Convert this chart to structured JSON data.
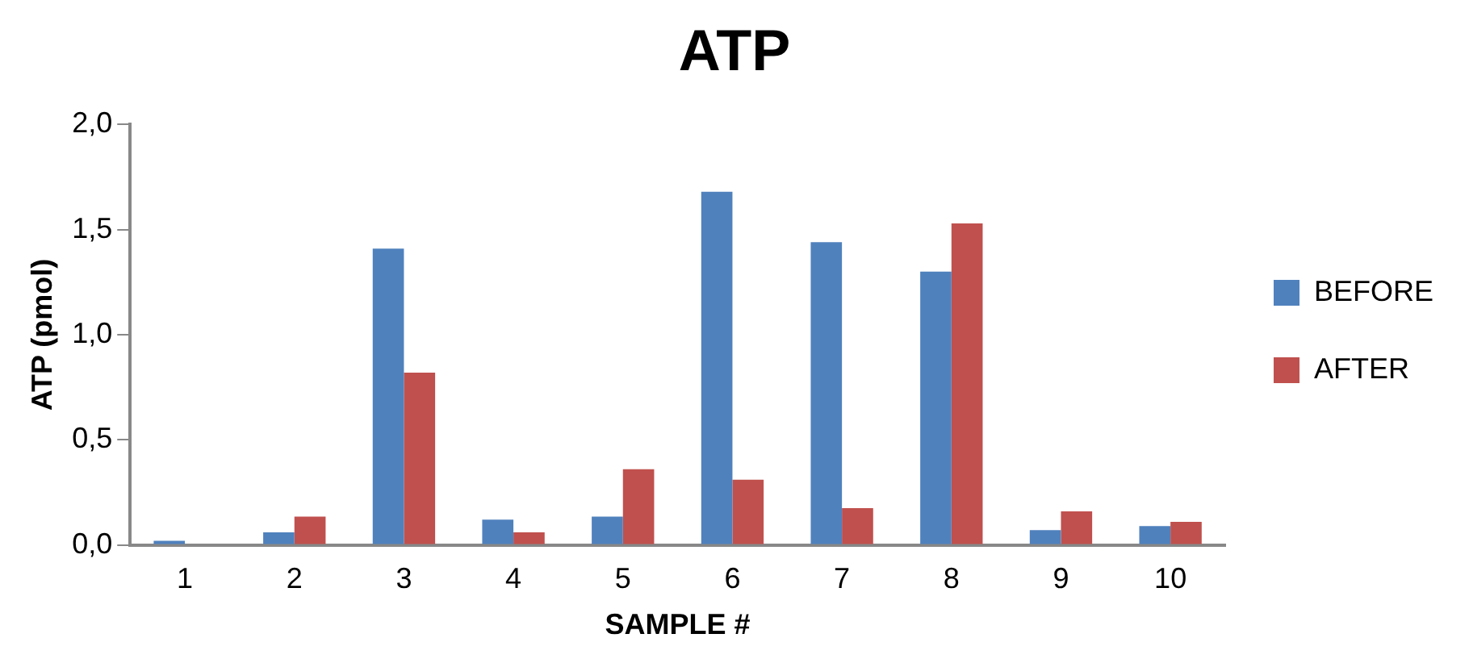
{
  "chart_data": {
    "type": "bar",
    "title": "ATP",
    "xlabel": "SAMPLE #",
    "ylabel": "ATP (pmol)",
    "categories": [
      "1",
      "2",
      "3",
      "4",
      "5",
      "6",
      "7",
      "8",
      "9",
      "10"
    ],
    "series": [
      {
        "name": "BEFORE",
        "color": "#4f81bd",
        "values": [
          0.02,
          0.06,
          1.41,
          0.12,
          0.135,
          1.68,
          1.44,
          1.3,
          0.07,
          0.09
        ]
      },
      {
        "name": "AFTER",
        "color": "#c0504d",
        "values": [
          0,
          0.135,
          0.82,
          0.06,
          0.36,
          0.31,
          0.175,
          1.53,
          0.16,
          0.11
        ]
      }
    ],
    "ylim": [
      0,
      2
    ],
    "yticks": [
      {
        "value": 0,
        "label": "0,0"
      },
      {
        "value": 0.5,
        "label": "0,5"
      },
      {
        "value": 1,
        "label": "1,0"
      },
      {
        "value": 1.5,
        "label": "1,5"
      },
      {
        "value": 2,
        "label": "2,0"
      }
    ],
    "grid": false,
    "legend": "right"
  }
}
